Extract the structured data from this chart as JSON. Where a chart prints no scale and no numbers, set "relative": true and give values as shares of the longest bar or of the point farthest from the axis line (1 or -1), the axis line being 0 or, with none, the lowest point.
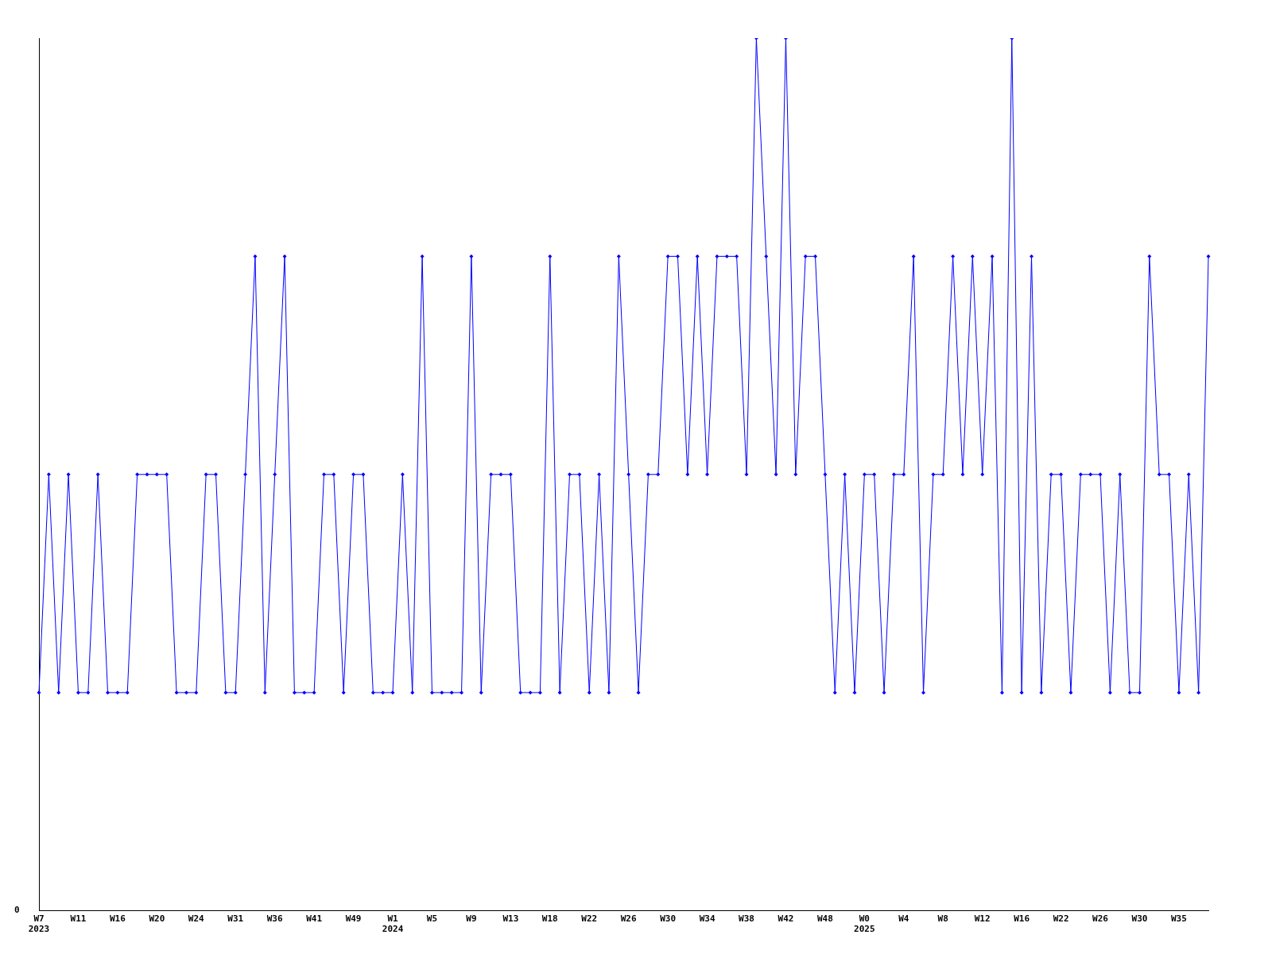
{
  "chart_data": {
    "type": "line",
    "relative": true,
    "marker": "diamond",
    "grid": false,
    "legend": false,
    "annotations": [
      "0"
    ],
    "categories": [
      "W7\n2023",
      null,
      null,
      null,
      "W11",
      null,
      null,
      null,
      "W16",
      null,
      null,
      null,
      "W20",
      null,
      null,
      null,
      "W24",
      null,
      null,
      null,
      "W31",
      null,
      null,
      null,
      "W36",
      null,
      null,
      null,
      "W41",
      null,
      null,
      null,
      "W49",
      null,
      null,
      null,
      "W1\n2024",
      null,
      null,
      null,
      "W5",
      null,
      null,
      null,
      "W9",
      null,
      null,
      null,
      "W13",
      null,
      null,
      null,
      "W18",
      null,
      null,
      null,
      "W22",
      null,
      null,
      null,
      "W26",
      null,
      null,
      null,
      "W30",
      null,
      null,
      null,
      "W34",
      null,
      null,
      null,
      "W38",
      null,
      null,
      null,
      "W42",
      null,
      null,
      null,
      "W48",
      null,
      null,
      null,
      "W0\n2025",
      null,
      null,
      null,
      "W4",
      null,
      null,
      null,
      "W8",
      null,
      null,
      null,
      "W12",
      null,
      null,
      null,
      "W16",
      null,
      null,
      null,
      "W22",
      null,
      null,
      null,
      "W26",
      null,
      null,
      null,
      "W30",
      null,
      null,
      null,
      "W35",
      null,
      null,
      null
    ],
    "series": [
      {
        "color": "#0000ff",
        "values": [
          0.25,
          0.5,
          0.25,
          0.5,
          0.25,
          0.25,
          0.5,
          0.25,
          0.25,
          0.25,
          0.5,
          0.5,
          0.5,
          0.5,
          0.25,
          0.25,
          0.25,
          0.5,
          0.5,
          0.25,
          0.25,
          0.5,
          0.75,
          0.25,
          0.5,
          0.75,
          0.25,
          0.25,
          0.25,
          0.5,
          0.5,
          0.25,
          0.5,
          0.5,
          0.25,
          0.25,
          0.25,
          0.5,
          0.25,
          0.75,
          0.25,
          0.25,
          0.25,
          0.25,
          0.75,
          0.25,
          0.5,
          0.5,
          0.5,
          0.25,
          0.25,
          0.25,
          0.75,
          0.25,
          0.5,
          0.5,
          0.25,
          0.5,
          0.25,
          0.75,
          0.5,
          0.25,
          0.5,
          0.5,
          0.75,
          0.75,
          0.5,
          0.75,
          0.5,
          0.75,
          0.75,
          0.75,
          0.5,
          1,
          0.75,
          0.5,
          1,
          0.5,
          0.75,
          0.75,
          0.5,
          0.25,
          0.5,
          0.25,
          0.5,
          0.5,
          0.25,
          0.5,
          0.5,
          0.75,
          0.25,
          0.5,
          0.5,
          0.75,
          0.5,
          0.75,
          0.5,
          0.75,
          0.25,
          1,
          0.25,
          0.75,
          0.25,
          0.5,
          0.5,
          0.25,
          0.5,
          0.5,
          0.5,
          0.25,
          0.5,
          0.25,
          0.25,
          0.75,
          0.5,
          0.5,
          0.25,
          0.5,
          0.25,
          0.75
        ]
      }
    ]
  }
}
